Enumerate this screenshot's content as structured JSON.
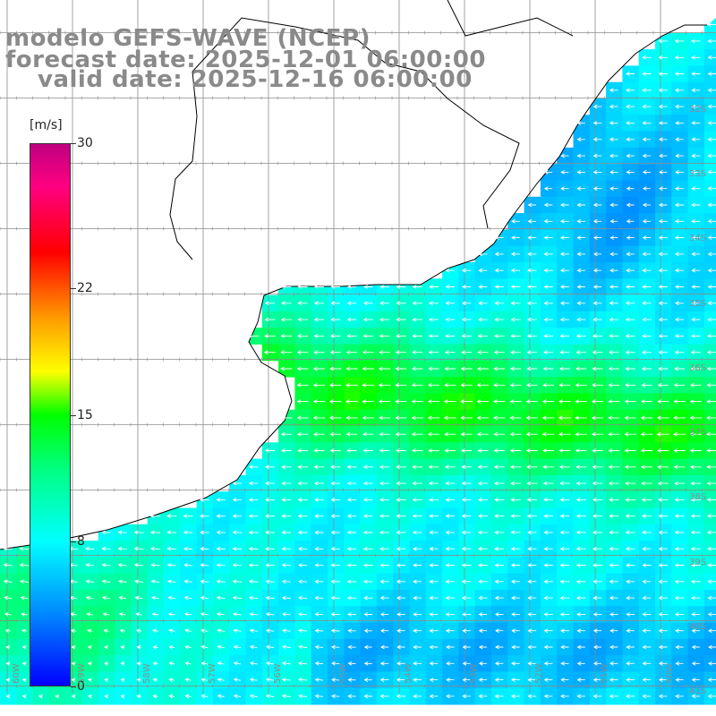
{
  "title": {
    "line1": "modelo GEFS-WAVE (NCEP)",
    "line2": "forecast date: 2025-12-01 06:00:00",
    "line3": "valid date: 2025-12-16 06:00:00"
  },
  "colorbar": {
    "unit": "[m/s]",
    "ticks": [
      {
        "label": "30",
        "value": 30
      },
      {
        "label": "22",
        "value": 22
      },
      {
        "label": "15",
        "value": 15
      },
      {
        "label": "8",
        "value": 8
      },
      {
        "label": "0",
        "value": 0
      }
    ],
    "range": [
      0,
      30
    ]
  },
  "lat_labels": [
    "32S",
    "33S",
    "34S",
    "35S",
    "36S",
    "37S",
    "38S",
    "39S",
    "40S",
    "41S"
  ],
  "lon_labels": [
    "60W",
    "59W",
    "58W",
    "57W",
    "56W",
    "55W",
    "54W",
    "53W",
    "52W",
    "51W",
    "50W"
  ],
  "colors": {
    "land": "#ffffff",
    "coast": "#000000",
    "grid": "#8c8c8c",
    "title": "#8a8a8a"
  }
}
